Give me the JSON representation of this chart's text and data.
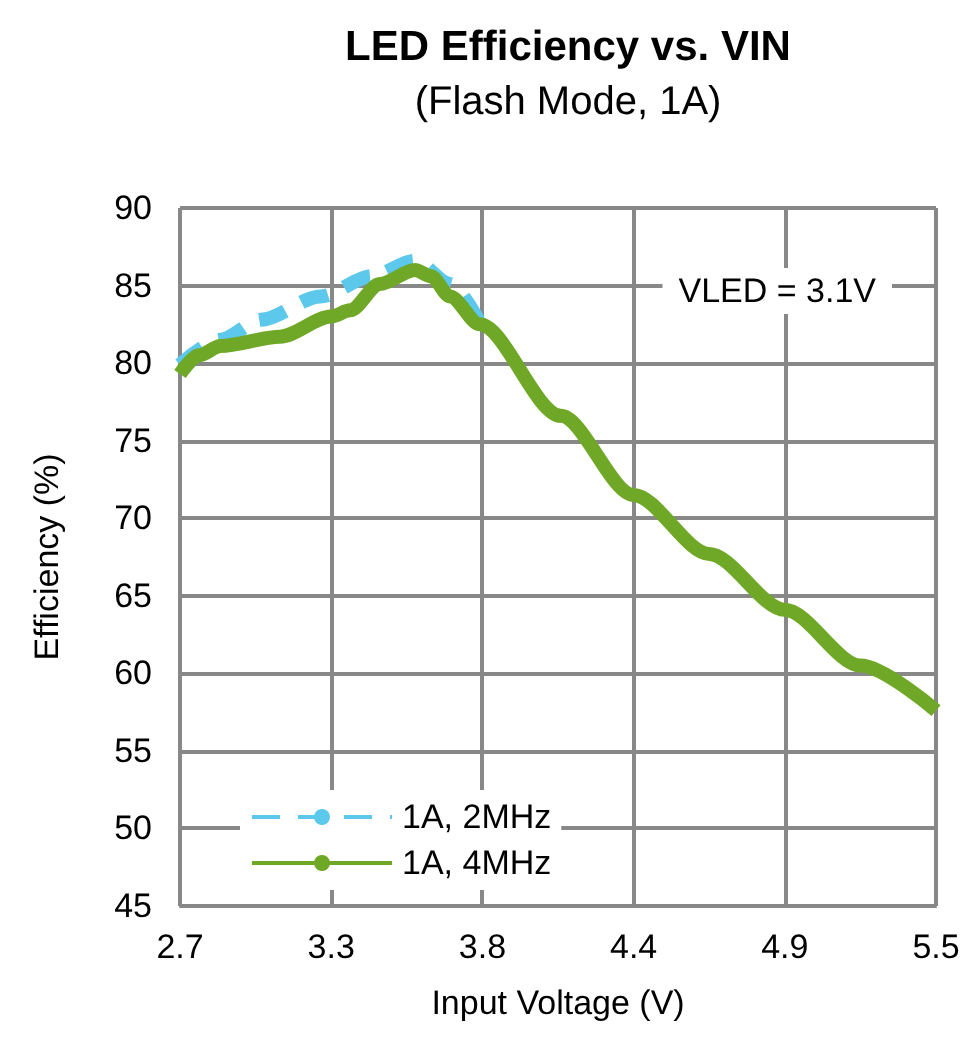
{
  "chart_data": {
    "type": "line",
    "title": "LED Efficiency vs. VIN",
    "subtitle": "(Flash Mode, 1A)",
    "xlabel": "Input Voltage (V)",
    "ylabel": "Efficiency (%)",
    "annotations": [
      "VLED = 3.1V"
    ],
    "xlim": [
      2.7,
      5.5
    ],
    "xticks": [
      2.7,
      {
        "value": 3.26,
        "label": "3.3"
      },
      {
        "value": 3.82,
        "label": "3.8"
      },
      {
        "value": 4.38,
        "label": "4.4"
      },
      {
        "value": 4.94,
        "label": "4.9"
      },
      5.5
    ],
    "ylim": [
      45,
      90
    ],
    "yticks": [
      45,
      50,
      55,
      60,
      65,
      70,
      75,
      80,
      85,
      90
    ],
    "grid": true,
    "legend": "bottom left",
    "marker": "none",
    "series": [
      {
        "name": "1A, 2MHz",
        "color": "#5bc8ec",
        "line_style": "dashed",
        "x": [
          2.7,
          2.85,
          3.0,
          3.22,
          3.41,
          3.57,
          3.7,
          3.81
        ],
        "values": [
          79.9,
          81.5,
          82.8,
          84.3,
          85.6,
          86.6,
          85.1,
          82.6
        ]
      },
      {
        "name": "1A, 4MHz",
        "color": "#6fa827",
        "line_style": "solid",
        "x": [
          2.7,
          2.77,
          2.85,
          3.07,
          3.26,
          3.33,
          3.44,
          3.57,
          3.63,
          3.7,
          3.81,
          4.11,
          4.38,
          4.66,
          4.94,
          5.22,
          5.5
        ],
        "values": [
          79.3,
          80.5,
          81.1,
          81.7,
          83.0,
          83.4,
          85.1,
          86.0,
          85.6,
          84.3,
          82.5,
          76.6,
          71.5,
          67.7,
          64.1,
          60.5,
          57.6
        ]
      }
    ]
  }
}
